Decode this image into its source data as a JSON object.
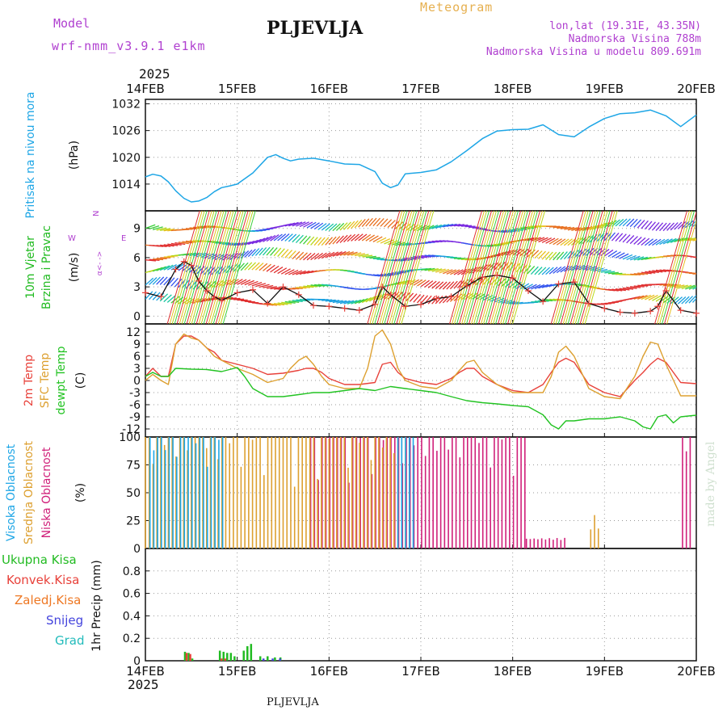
{
  "header": {
    "model_label": "Model",
    "model_value": "wrf-nmm_v3.9.1  e1km",
    "title": "PLJEVLJA",
    "product": "Meteogram",
    "lonlat": "lon,lat (19.31E, 43.35N)",
    "elevation": "Nadmorska Visina 788m",
    "model_elevation": "Nadmorska Visina u modelu 809.691m",
    "year_top": "2025",
    "year_bottom": "2025",
    "footer_station": "PLJEVLJA",
    "watermark": "made by Angel"
  },
  "colors": {
    "pressure": "#1ea6e6",
    "wind_title": "#22bb22",
    "temp_2m": "#e8413a",
    "temp_sfc": "#dda030",
    "dewpoint": "#22c322",
    "cloud_high": "#1ea6e6",
    "cloud_mid": "#dda030",
    "cloud_low": "#d0207a",
    "precip_total": "#22bb22",
    "precip_conv": "#e8413a",
    "precip_frz": "#ee7722",
    "snow": "#4444dd",
    "hail": "#22bbbb",
    "purple": "#b040d0",
    "orange": "#e6b050"
  },
  "chart_data": [
    {
      "id": "pressure",
      "type": "line",
      "title": "",
      "ylabel": "Pritisak na nivou mora",
      "units": "(hPa)",
      "ylim": [
        1008,
        1033
      ],
      "yticks": [
        "1014",
        "1020",
        "1026",
        "1032"
      ],
      "xlabel": "",
      "x_ticks": [
        "14FEB",
        "15FEB",
        "16FEB",
        "17FEB",
        "18FEB",
        "19FEB",
        "20FEB"
      ],
      "grid": true,
      "series": [
        {
          "key": "pressure",
          "x": [
            0,
            0.08,
            0.17,
            0.25,
            0.33,
            0.42,
            0.5,
            0.58,
            0.67,
            0.75,
            0.83,
            0.92,
            1.0,
            1.17,
            1.33,
            1.42,
            1.5,
            1.58,
            1.67,
            1.83,
            2.0,
            2.17,
            2.33,
            2.5,
            2.58,
            2.67,
            2.75,
            2.83,
            3.0,
            3.17,
            3.33,
            3.5,
            3.67,
            3.83,
            4.0,
            4.17,
            4.33,
            4.5,
            4.67,
            4.83,
            5.0,
            5.17,
            5.33,
            5.5,
            5.67,
            5.83,
            6.0
          ],
          "y": [
            1015.6,
            1016.2,
            1015.8,
            1014.5,
            1012.5,
            1010.8,
            1010.0,
            1010.2,
            1011.0,
            1012.3,
            1013.2,
            1013.6,
            1014.0,
            1016.5,
            1020.0,
            1020.6,
            1019.8,
            1019.2,
            1019.6,
            1019.8,
            1019.2,
            1018.5,
            1018.4,
            1016.8,
            1014.2,
            1013.2,
            1013.8,
            1016.3,
            1016.6,
            1017.2,
            1019.0,
            1021.5,
            1024.2,
            1025.9,
            1026.2,
            1026.3,
            1027.3,
            1025.1,
            1024.6,
            1026.8,
            1028.7,
            1029.8,
            1030.0,
            1030.6,
            1029.3,
            1026.9,
            1029.5
          ],
          "extra_end": 1029.8
        }
      ]
    },
    {
      "id": "wind",
      "type": "line",
      "title": "",
      "ylabel": "10m Vjetar",
      "ylabel2": "Brzina i Pravac",
      "units": "(m/s)",
      "ylim": [
        -0.8,
        10.8
      ],
      "yticks": [
        "0",
        "3",
        "6",
        "9"
      ],
      "legend_compass": [
        "N",
        "W",
        "E",
        "α<-  ->"
      ],
      "series": [
        {
          "key": "wind_speed",
          "x": [
            0,
            0.17,
            0.33,
            0.42,
            0.5,
            0.58,
            0.67,
            0.75,
            0.83,
            1.0,
            1.17,
            1.33,
            1.5,
            1.67,
            1.83,
            2.0,
            2.17,
            2.33,
            2.5,
            2.58,
            2.67,
            2.83,
            3.0,
            3.17,
            3.33,
            3.5,
            3.67,
            3.83,
            4.0,
            4.17,
            4.33,
            4.5,
            4.67,
            4.83,
            5.0,
            5.17,
            5.33,
            5.5,
            5.58,
            5.67,
            5.83,
            6.0
          ],
          "y": [
            2.4,
            2.0,
            4.8,
            5.6,
            5.2,
            3.6,
            2.6,
            2.0,
            1.6,
            2.4,
            2.7,
            1.3,
            3.0,
            2.2,
            1.1,
            1.0,
            0.8,
            0.6,
            1.2,
            3.0,
            2.2,
            1.0,
            1.2,
            1.8,
            2.0,
            3.1,
            4.0,
            4.2,
            3.9,
            2.6,
            1.5,
            3.3,
            3.5,
            1.3,
            0.8,
            0.4,
            0.3,
            0.5,
            1.0,
            2.6,
            0.6,
            0.3
          ],
          "markers": true
        }
      ]
    },
    {
      "id": "temperature",
      "type": "line",
      "title": "",
      "ylabel_lines": [
        "2m Temp",
        "SFC Temp",
        "dewpt Temp"
      ],
      "units": "(C)",
      "ylim": [
        -14,
        14
      ],
      "yticks": [
        "12",
        "9",
        "6",
        "3",
        "0",
        "-3",
        "-6",
        "-9",
        "-12"
      ],
      "series": [
        {
          "key": "temp_2m",
          "x": [
            0,
            0.08,
            0.17,
            0.25,
            0.33,
            0.42,
            0.5,
            0.58,
            0.67,
            0.75,
            0.83,
            1.0,
            1.17,
            1.33,
            1.5,
            1.67,
            1.75,
            1.83,
            1.92,
            2.0,
            2.17,
            2.33,
            2.5,
            2.58,
            2.67,
            2.75,
            2.83,
            3.0,
            3.17,
            3.33,
            3.42,
            3.5,
            3.58,
            3.67,
            3.83,
            4.0,
            4.17,
            4.33,
            4.42,
            4.5,
            4.58,
            4.67,
            4.83,
            5.0,
            5.17,
            5.33,
            5.42,
            5.5,
            5.58,
            5.67,
            5.83,
            6.0
          ],
          "y": [
            1,
            3,
            1,
            1,
            9,
            11,
            11,
            10,
            8,
            7,
            5,
            4,
            3,
            1.5,
            1.8,
            2.5,
            3,
            3,
            2,
            0.5,
            -1,
            -1,
            -0.5,
            4,
            4.5,
            2,
            0.5,
            -0.5,
            -1,
            0.5,
            2,
            3,
            3,
            1,
            -1,
            -2.5,
            -3,
            -1,
            2,
            4.5,
            5.5,
            4.5,
            -1,
            -3,
            -4,
            0,
            2,
            4,
            5.5,
            4.5,
            -0.5,
            -0.8
          ]
        },
        {
          "key": "temp_sfc",
          "x": [
            0,
            0.08,
            0.17,
            0.25,
            0.33,
            0.42,
            0.5,
            0.58,
            0.67,
            0.75,
            0.83,
            1.0,
            1.17,
            1.33,
            1.5,
            1.58,
            1.67,
            1.75,
            1.83,
            1.92,
            2.0,
            2.17,
            2.33,
            2.42,
            2.5,
            2.58,
            2.67,
            2.75,
            2.83,
            3.0,
            3.17,
            3.33,
            3.42,
            3.5,
            3.58,
            3.67,
            3.83,
            4.0,
            4.17,
            4.33,
            4.42,
            4.5,
            4.58,
            4.67,
            4.83,
            5.0,
            5.17,
            5.33,
            5.42,
            5.5,
            5.58,
            5.67,
            5.83,
            6.0
          ],
          "y": [
            0,
            1.5,
            0,
            -1,
            9,
            11.5,
            10.5,
            10,
            8,
            6,
            5,
            3,
            1.5,
            -0.5,
            0.5,
            3,
            5,
            6,
            4,
            1,
            -1,
            -2,
            -2,
            3,
            11,
            12.5,
            9,
            3,
            0,
            -1.5,
            -2,
            0,
            2.5,
            4.5,
            5,
            2,
            -1,
            -3,
            -3,
            -3,
            1,
            7,
            8.5,
            6,
            -2,
            -4,
            -4.5,
            1,
            6,
            9.5,
            9,
            4,
            -3.8,
            -3.8
          ]
        },
        {
          "key": "dewpoint",
          "x": [
            0,
            0.08,
            0.17,
            0.25,
            0.33,
            0.5,
            0.67,
            0.83,
            1.0,
            1.08,
            1.17,
            1.25,
            1.33,
            1.5,
            1.67,
            1.83,
            2.0,
            2.17,
            2.33,
            2.5,
            2.67,
            2.83,
            3.0,
            3.17,
            3.33,
            3.5,
            3.67,
            3.83,
            4.0,
            4.17,
            4.33,
            4.42,
            4.5,
            4.58,
            4.67,
            4.83,
            5.0,
            5.17,
            5.33,
            5.42,
            5.5,
            5.58,
            5.67,
            5.75,
            5.83,
            6.0
          ],
          "y": [
            1,
            2,
            1,
            1,
            3,
            2.8,
            2.7,
            2.2,
            3.2,
            1,
            -2,
            -3,
            -4,
            -4,
            -3.5,
            -3,
            -3,
            -2.5,
            -2,
            -2.5,
            -1.5,
            -2,
            -2.5,
            -3,
            -4,
            -5,
            -5.5,
            -5.8,
            -6.2,
            -6.5,
            -8.5,
            -11,
            -12,
            -10,
            -10,
            -9.5,
            -9.5,
            -9,
            -10,
            -11.5,
            -12,
            -9,
            -8.5,
            -10.5,
            -9,
            -8.6
          ]
        }
      ]
    },
    {
      "id": "clouds",
      "type": "bar",
      "title": "",
      "ylabel_lines": [
        "Visoka Oblacnost",
        "Srednja Oblacnost",
        "Niska Oblacnost"
      ],
      "units": "(%)",
      "ylim": [
        0,
        100
      ],
      "yticks": [
        "0",
        "25",
        "50",
        "75",
        "100"
      ],
      "series": [
        {
          "key": "cloud_high",
          "name": "Visoka Oblacnost",
          "ranges": [
            [
              0.05,
              0.85,
              100
            ],
            [
              2.75,
              2.95,
              100
            ]
          ],
          "values_note": "mostly 100% with gaps"
        },
        {
          "key": "cloud_mid",
          "name": "Srednja Oblacnost",
          "ranges": [
            [
              0.0,
              2.9,
              100
            ],
            [
              4.85,
              4.95,
              30
            ]
          ]
        },
        {
          "key": "cloud_low",
          "name": "Niska Oblacnost",
          "ranges": [
            [
              1.8,
              4.15,
              100
            ],
            [
              4.15,
              4.6,
              10
            ],
            [
              5.85,
              5.95,
              100
            ]
          ]
        }
      ]
    },
    {
      "id": "precip",
      "type": "bar",
      "title": "",
      "ylabel": "1hr Precip",
      "units": "(mm)",
      "ylim": [
        0,
        1.0
      ],
      "yticks": [
        "0",
        "0.2",
        "0.4",
        "0.6",
        "0.8"
      ],
      "legend": [
        "Ukupna Kisa",
        "Konvek.Kisa",
        "Zaledj.Kisa",
        "Snijeg",
        "Grad"
      ],
      "series": [
        {
          "key": "precip_total",
          "x": [
            0.42,
            0.46,
            0.5,
            0.8,
            0.84,
            0.88,
            0.92,
            0.96,
            1.06,
            1.1,
            1.14,
            1.24,
            1.32,
            1.4,
            1.46
          ],
          "y": [
            0.08,
            0.07,
            0.02,
            0.09,
            0.08,
            0.07,
            0.07,
            0.04,
            0.09,
            0.13,
            0.15,
            0.04,
            0.04,
            0.03,
            0.03
          ]
        },
        {
          "key": "precip_conv",
          "x": [
            0.42,
            0.46,
            0.8,
            0.84
          ],
          "y": [
            0.07,
            0.06,
            0.02,
            0.02
          ]
        },
        {
          "key": "snow",
          "x": [
            1.24,
            1.34,
            1.42
          ],
          "y": [
            0.02,
            0.02,
            0.02
          ]
        }
      ]
    }
  ]
}
